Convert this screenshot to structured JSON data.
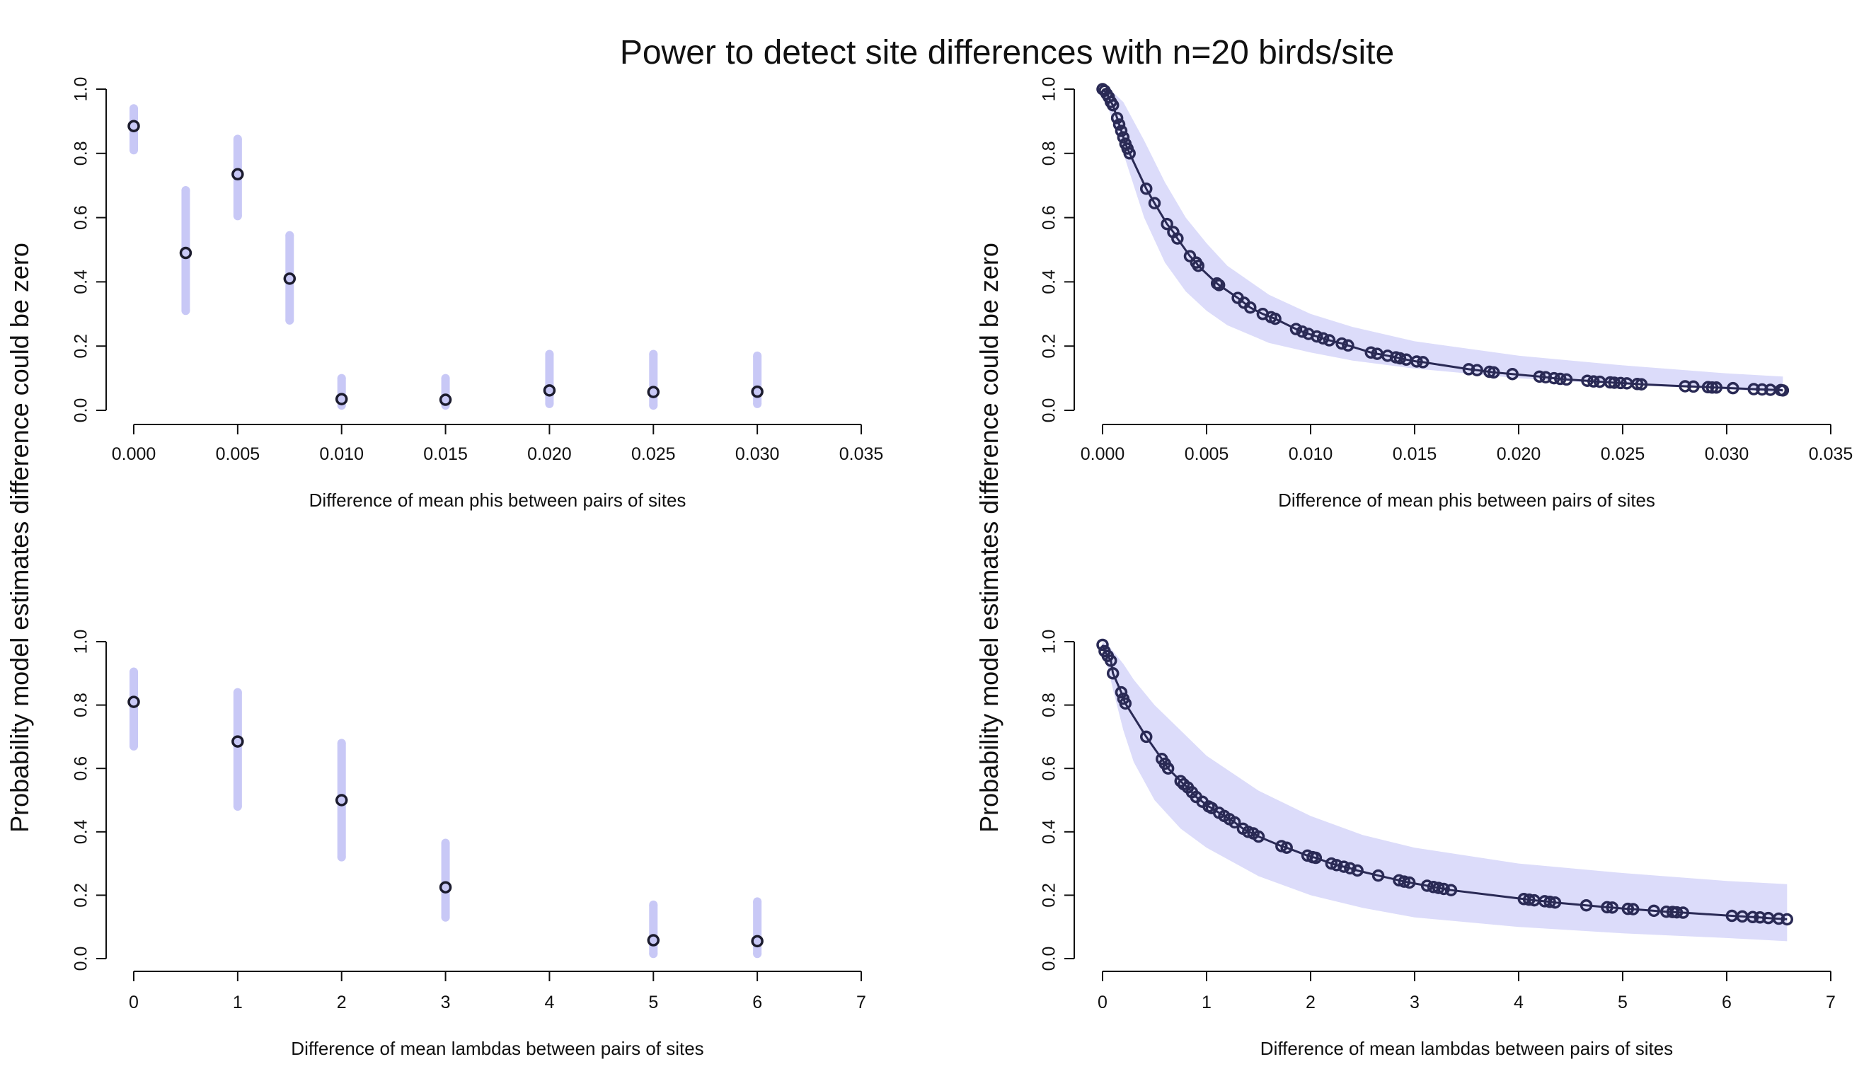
{
  "figure": {
    "title": "Power to detect site differences with n=20 birds/site",
    "ylabel": "Probability model estimates difference could be zero"
  },
  "colors": {
    "interval": "#c8c8f6",
    "band": "#dcdcfa",
    "point": "#1c1c2e",
    "line": "#2a2a55"
  },
  "chart_data": [
    {
      "type": "scatter",
      "panel": "top-left",
      "xlabel": "Difference of mean phis between pairs of sites",
      "xlim": [
        0,
        0.035
      ],
      "ylim": [
        0,
        1
      ],
      "xticks": [
        "0.000",
        "0.005",
        "0.010",
        "0.015",
        "0.020",
        "0.025",
        "0.030",
        "0.035"
      ],
      "xtick_values": [
        0,
        0.005,
        0.01,
        0.015,
        0.02,
        0.025,
        0.03,
        0.035
      ],
      "yticks": [
        "0.0",
        "0.2",
        "0.4",
        "0.6",
        "0.8",
        "1.0"
      ],
      "ytick_values": [
        0,
        0.2,
        0.4,
        0.6,
        0.8,
        1.0
      ],
      "points": [
        {
          "x": 0.0,
          "y": 0.885,
          "lo": 0.81,
          "hi": 0.94
        },
        {
          "x": 0.0025,
          "y": 0.49,
          "lo": 0.31,
          "hi": 0.685
        },
        {
          "x": 0.005,
          "y": 0.735,
          "lo": 0.605,
          "hi": 0.845
        },
        {
          "x": 0.0075,
          "y": 0.41,
          "lo": 0.28,
          "hi": 0.545
        },
        {
          "x": 0.01,
          "y": 0.035,
          "lo": 0.015,
          "hi": 0.1
        },
        {
          "x": 0.015,
          "y": 0.033,
          "lo": 0.015,
          "hi": 0.1
        },
        {
          "x": 0.02,
          "y": 0.062,
          "lo": 0.02,
          "hi": 0.175
        },
        {
          "x": 0.025,
          "y": 0.057,
          "lo": 0.015,
          "hi": 0.175
        },
        {
          "x": 0.03,
          "y": 0.058,
          "lo": 0.02,
          "hi": 0.17
        }
      ]
    },
    {
      "type": "line",
      "panel": "top-right",
      "xlabel": "Difference of mean phis between pairs of sites",
      "xlim": [
        0,
        0.035
      ],
      "ylim": [
        0,
        1
      ],
      "xticks": [
        "0.000",
        "0.005",
        "0.010",
        "0.015",
        "0.020",
        "0.025",
        "0.030",
        "0.035"
      ],
      "xtick_values": [
        0,
        0.005,
        0.01,
        0.015,
        0.02,
        0.025,
        0.03,
        0.035
      ],
      "yticks": [
        "0.0",
        "0.2",
        "0.4",
        "0.6",
        "0.8",
        "1.0"
      ],
      "ytick_values": [
        0,
        0.2,
        0.4,
        0.6,
        0.8,
        1.0
      ],
      "x": [
        0.0,
        0.0001,
        0.0002,
        0.0003,
        0.0004,
        0.0005,
        0.0007,
        0.0008,
        0.0009,
        0.001,
        0.0011,
        0.0012,
        0.0013,
        0.0021,
        0.0025,
        0.0031,
        0.0034,
        0.0036,
        0.0042,
        0.0045,
        0.0046,
        0.0055,
        0.0056,
        0.0065,
        0.0068,
        0.0071,
        0.0077,
        0.0081,
        0.0083,
        0.0093,
        0.0096,
        0.0099,
        0.0103,
        0.0106,
        0.0109,
        0.0115,
        0.0118,
        0.0129,
        0.0132,
        0.0137,
        0.0141,
        0.0143,
        0.0146,
        0.0151,
        0.0154,
        0.0176,
        0.018,
        0.0186,
        0.0188,
        0.0197,
        0.021,
        0.0213,
        0.0217,
        0.022,
        0.0223,
        0.0233,
        0.0236,
        0.0239,
        0.0244,
        0.0246,
        0.0249,
        0.0252,
        0.0257,
        0.0259,
        0.028,
        0.0284,
        0.0291,
        0.0293,
        0.0295,
        0.0303,
        0.0313,
        0.0317,
        0.0321,
        0.0326,
        0.0327
      ],
      "y": [
        1.0,
        0.995,
        0.985,
        0.975,
        0.96,
        0.95,
        0.91,
        0.89,
        0.87,
        0.85,
        0.83,
        0.815,
        0.8,
        0.69,
        0.645,
        0.58,
        0.555,
        0.535,
        0.48,
        0.46,
        0.45,
        0.395,
        0.39,
        0.35,
        0.335,
        0.32,
        0.3,
        0.29,
        0.285,
        0.253,
        0.245,
        0.238,
        0.23,
        0.224,
        0.218,
        0.208,
        0.202,
        0.18,
        0.176,
        0.17,
        0.165,
        0.162,
        0.158,
        0.152,
        0.15,
        0.128,
        0.125,
        0.12,
        0.118,
        0.113,
        0.105,
        0.103,
        0.1,
        0.098,
        0.096,
        0.092,
        0.09,
        0.089,
        0.087,
        0.086,
        0.085,
        0.084,
        0.082,
        0.081,
        0.075,
        0.074,
        0.072,
        0.071,
        0.071,
        0.069,
        0.066,
        0.065,
        0.064,
        0.063,
        0.062
      ],
      "band_x": [
        0.0,
        0.0005,
        0.001,
        0.002,
        0.003,
        0.004,
        0.005,
        0.006,
        0.008,
        0.01,
        0.012,
        0.015,
        0.02,
        0.025,
        0.03,
        0.0327
      ],
      "band_hi": [
        1.0,
        0.99,
        0.96,
        0.84,
        0.71,
        0.6,
        0.52,
        0.45,
        0.36,
        0.3,
        0.26,
        0.215,
        0.17,
        0.14,
        0.115,
        0.105
      ],
      "band_lo": [
        0.99,
        0.9,
        0.8,
        0.6,
        0.46,
        0.37,
        0.31,
        0.265,
        0.21,
        0.18,
        0.155,
        0.13,
        0.1,
        0.08,
        0.065,
        0.055
      ]
    },
    {
      "type": "scatter",
      "panel": "bottom-left",
      "xlabel": "Difference of mean lambdas between pairs of sites",
      "xlim": [
        0,
        7
      ],
      "ylim": [
        0,
        1
      ],
      "xticks": [
        "0",
        "1",
        "2",
        "3",
        "4",
        "5",
        "6",
        "7"
      ],
      "xtick_values": [
        0,
        1,
        2,
        3,
        4,
        5,
        6,
        7
      ],
      "yticks": [
        "0.0",
        "0.2",
        "0.4",
        "0.6",
        "0.8",
        "1.0"
      ],
      "ytick_values": [
        0,
        0.2,
        0.4,
        0.6,
        0.8,
        1.0
      ],
      "points": [
        {
          "x": 0,
          "y": 0.81,
          "lo": 0.67,
          "hi": 0.905
        },
        {
          "x": 1,
          "y": 0.685,
          "lo": 0.48,
          "hi": 0.84
        },
        {
          "x": 2,
          "y": 0.5,
          "lo": 0.32,
          "hi": 0.68
        },
        {
          "x": 3,
          "y": 0.225,
          "lo": 0.13,
          "hi": 0.365
        },
        {
          "x": 5,
          "y": 0.058,
          "lo": 0.015,
          "hi": 0.17
        },
        {
          "x": 6,
          "y": 0.055,
          "lo": 0.015,
          "hi": 0.18
        }
      ]
    },
    {
      "type": "line",
      "panel": "bottom-right",
      "xlabel": "Difference of mean lambdas between pairs of sites",
      "xlim": [
        0,
        7
      ],
      "ylim": [
        0,
        1
      ],
      "xticks": [
        "0",
        "1",
        "2",
        "3",
        "4",
        "5",
        "6",
        "7"
      ],
      "xtick_values": [
        0,
        1,
        2,
        3,
        4,
        5,
        6,
        7
      ],
      "yticks": [
        "0.0",
        "0.2",
        "0.4",
        "0.6",
        "0.8",
        "1.0"
      ],
      "ytick_values": [
        0,
        0.2,
        0.4,
        0.6,
        0.8,
        1.0
      ],
      "x": [
        0.0,
        0.02,
        0.05,
        0.08,
        0.1,
        0.18,
        0.2,
        0.22,
        0.42,
        0.57,
        0.6,
        0.63,
        0.75,
        0.78,
        0.82,
        0.86,
        0.9,
        0.96,
        1.02,
        1.05,
        1.12,
        1.17,
        1.22,
        1.27,
        1.35,
        1.4,
        1.45,
        1.5,
        1.72,
        1.77,
        1.97,
        2.02,
        2.05,
        2.2,
        2.25,
        2.32,
        2.38,
        2.45,
        2.65,
        2.85,
        2.9,
        2.95,
        3.12,
        3.18,
        3.23,
        3.28,
        3.35,
        4.05,
        4.1,
        4.15,
        4.25,
        4.3,
        4.35,
        4.65,
        4.85,
        4.9,
        5.05,
        5.1,
        5.3,
        5.42,
        5.48,
        5.52,
        5.58,
        6.05,
        6.15,
        6.25,
        6.32,
        6.4,
        6.5,
        6.58
      ],
      "y": [
        0.99,
        0.97,
        0.955,
        0.94,
        0.9,
        0.84,
        0.82,
        0.805,
        0.7,
        0.63,
        0.615,
        0.6,
        0.56,
        0.55,
        0.54,
        0.525,
        0.51,
        0.495,
        0.48,
        0.475,
        0.46,
        0.45,
        0.44,
        0.43,
        0.41,
        0.4,
        0.395,
        0.385,
        0.355,
        0.35,
        0.325,
        0.32,
        0.318,
        0.3,
        0.295,
        0.29,
        0.285,
        0.278,
        0.262,
        0.247,
        0.243,
        0.24,
        0.23,
        0.226,
        0.223,
        0.22,
        0.216,
        0.188,
        0.186,
        0.184,
        0.181,
        0.179,
        0.177,
        0.168,
        0.162,
        0.161,
        0.157,
        0.156,
        0.151,
        0.148,
        0.147,
        0.146,
        0.145,
        0.135,
        0.133,
        0.131,
        0.13,
        0.128,
        0.126,
        0.124
      ],
      "band_x": [
        0.0,
        0.05,
        0.1,
        0.2,
        0.3,
        0.5,
        0.75,
        1.0,
        1.5,
        2.0,
        2.5,
        3.0,
        4.0,
        5.0,
        6.0,
        6.58
      ],
      "band_hi": [
        1.0,
        0.99,
        0.97,
        0.93,
        0.88,
        0.8,
        0.72,
        0.64,
        0.53,
        0.45,
        0.39,
        0.35,
        0.3,
        0.27,
        0.245,
        0.235
      ],
      "band_lo": [
        0.98,
        0.92,
        0.85,
        0.72,
        0.62,
        0.5,
        0.41,
        0.35,
        0.26,
        0.2,
        0.16,
        0.13,
        0.1,
        0.08,
        0.065,
        0.055
      ]
    }
  ]
}
